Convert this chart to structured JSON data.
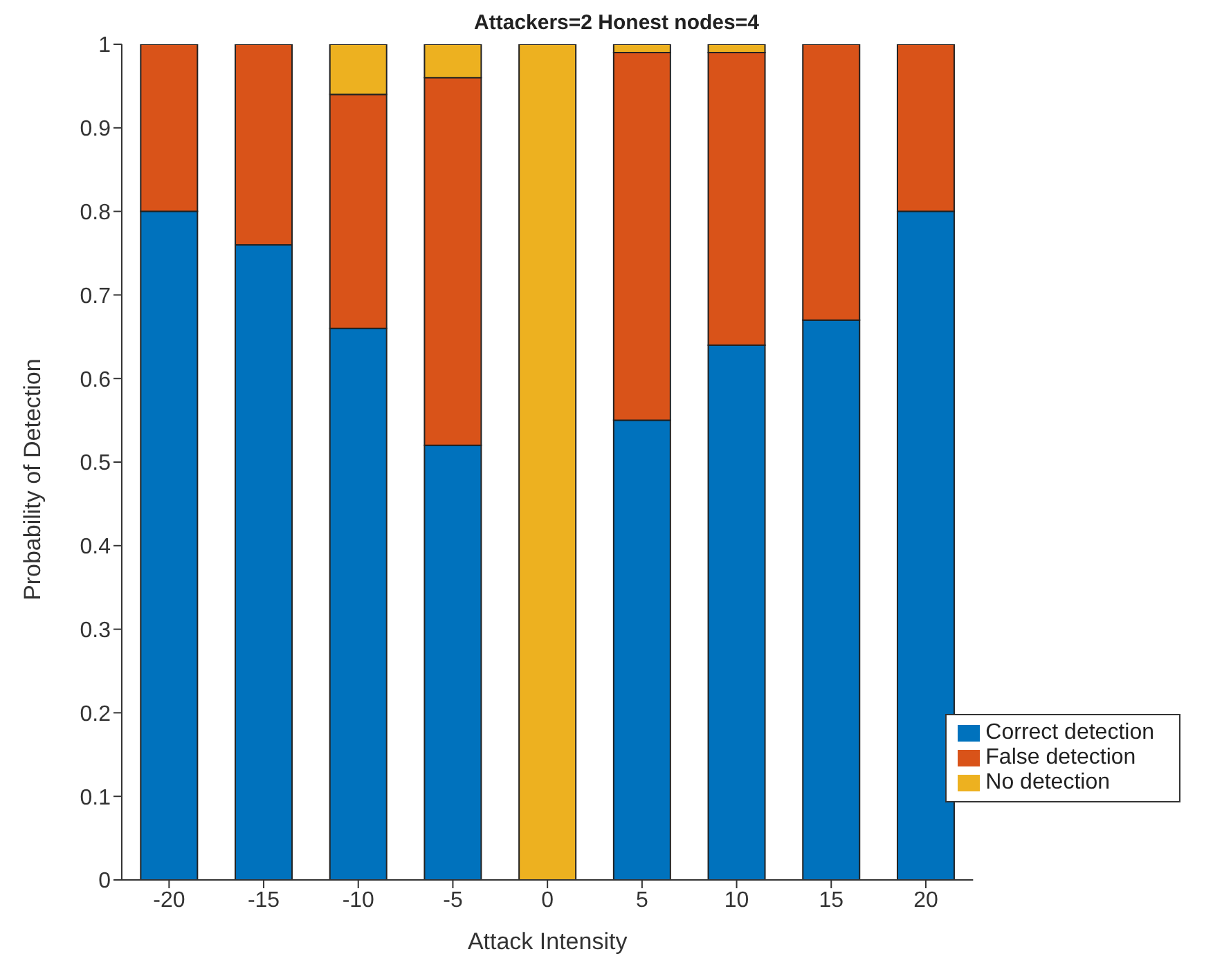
{
  "chart_data": {
    "type": "bar",
    "title": "Attackers=2 Honest nodes=4",
    "xlabel": "Attack Intensity",
    "ylabel": "Probability of Detection",
    "categories": [
      "-20",
      "-15",
      "-10",
      "-5",
      "0",
      "5",
      "10",
      "15",
      "20"
    ],
    "stacked": true,
    "series": [
      {
        "name": "Correct detection",
        "color": "#0072bd",
        "values": [
          0.8,
          0.76,
          0.66,
          0.52,
          0,
          0.55,
          0.64,
          0.67,
          0.8
        ]
      },
      {
        "name": "False detection",
        "color": "#d95319",
        "values": [
          0.2,
          0.24,
          0.28,
          0.44,
          0,
          0.44,
          0.35,
          0.33,
          0.2
        ]
      },
      {
        "name": "No detection",
        "color": "#edb120",
        "values": [
          0,
          0,
          0.06,
          0.04,
          1,
          0.01,
          0.01,
          0,
          0
        ]
      }
    ],
    "ylim": [
      0,
      1
    ],
    "yticks": [
      0,
      0.1,
      0.2,
      0.3,
      0.4,
      0.5,
      0.6,
      0.7,
      0.8,
      0.9,
      1
    ],
    "grid": false,
    "legend": "bottom right"
  }
}
